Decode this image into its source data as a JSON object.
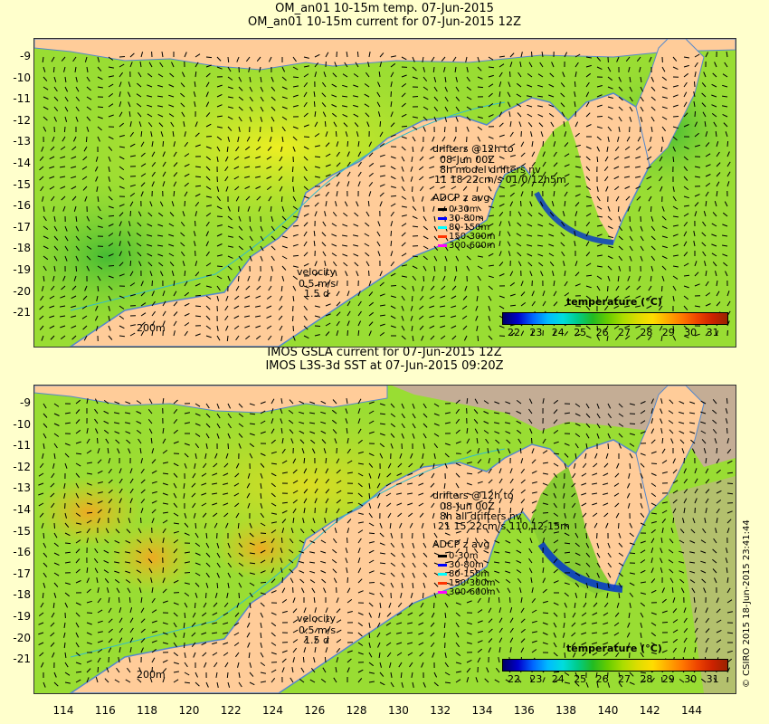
{
  "top": {
    "title1": "OM_an01 10-15m temp. 07-Jun-2015",
    "title2": "OM_an01 10-15m current for 07-Jun-2015 12Z",
    "drifters": [
      "drifters @12h to",
      "08-Jun 00Z",
      "8h model drifters nv",
      "11   18    22cm/s 01/0/12h5m"
    ],
    "velocity": [
      "velocity",
      "0.5 m/s",
      "1.5 d"
    ],
    "depth": "200m"
  },
  "bottom": {
    "title1": "IMOS GSLA current for 07-Jun-2015 12Z",
    "title2": "IMOS L3S-3d SST at 07-Jun-2015 09:20Z",
    "drifters": [
      "drifters @12h to",
      "08-Jun 00Z",
      "8h all drifters nv",
      "21 15 22cm/s 110,12-15m"
    ],
    "velocity": [
      "velocity",
      "0.5 m/s",
      "1.5 d"
    ],
    "depth": "200m"
  },
  "adcp": {
    "title": "ADCP z avg",
    "items": [
      {
        "label": "0-30m",
        "color": "#000000"
      },
      {
        "label": "30-80m",
        "color": "#0000ff"
      },
      {
        "label": "80-150m",
        "color": "#00ffff"
      },
      {
        "label": "150-300m",
        "color": "#ff3300"
      },
      {
        "label": "300-600m",
        "color": "#ff00ff"
      }
    ]
  },
  "colorbar": {
    "title": "temperature (°C)",
    "ticks": [
      "22",
      "23",
      "24",
      "25",
      "26",
      "27",
      "28",
      "29",
      "30",
      "31"
    ],
    "colors": [
      "#000066",
      "#0000cc",
      "#0066ff",
      "#00bbff",
      "#00dddd",
      "#00cc88",
      "#22bb22",
      "#66cc00",
      "#aadd00",
      "#dddd00",
      "#ffdd00",
      "#ffaa00",
      "#ff7700",
      "#ee4400",
      "#cc2200",
      "#992200"
    ]
  },
  "map": {
    "ylabels": [
      "-9",
      "-10",
      "-11",
      "-12",
      "-13",
      "-14",
      "-15",
      "-16",
      "-17",
      "-18",
      "-19",
      "-20",
      "-21"
    ],
    "xlabels": [
      "114",
      "116",
      "118",
      "120",
      "122",
      "124",
      "126",
      "128",
      "130",
      "132",
      "134",
      "136",
      "138",
      "140",
      "142",
      "144"
    ],
    "colors": {
      "land": "#ffcc99",
      "ocean": "#99dd33",
      "nodata": "#c4ad95"
    }
  },
  "credit": "© CSIRO 2015  18-Jun-2015 23:41:44"
}
